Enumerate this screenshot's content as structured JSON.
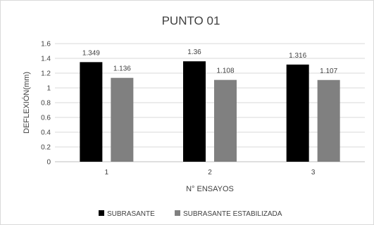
{
  "chart_data": {
    "type": "bar",
    "title": "PUNTO 01",
    "xlabel": "N° ENSAYOS",
    "ylabel": "DEFLEXIÓN(mm)",
    "categories": [
      "1",
      "2",
      "3"
    ],
    "ylim": [
      0,
      1.6
    ],
    "yticks": [
      "0",
      "0.2",
      "0.4",
      "0.6",
      "0.8",
      "1",
      "1.2",
      "1.4",
      "1.6"
    ],
    "grid": true,
    "legend_position": "bottom",
    "series": [
      {
        "name": "SUBRASANTE",
        "values": [
          1.349,
          1.36,
          1.316
        ],
        "labels": [
          "1.349",
          "1.36",
          "1.316"
        ],
        "color": "#000000"
      },
      {
        "name": "SUBRASANTE ESTABILIZADA",
        "values": [
          1.136,
          1.108,
          1.107
        ],
        "labels": [
          "1.136",
          "1.108",
          "1.107"
        ],
        "color": "#808080"
      }
    ]
  }
}
